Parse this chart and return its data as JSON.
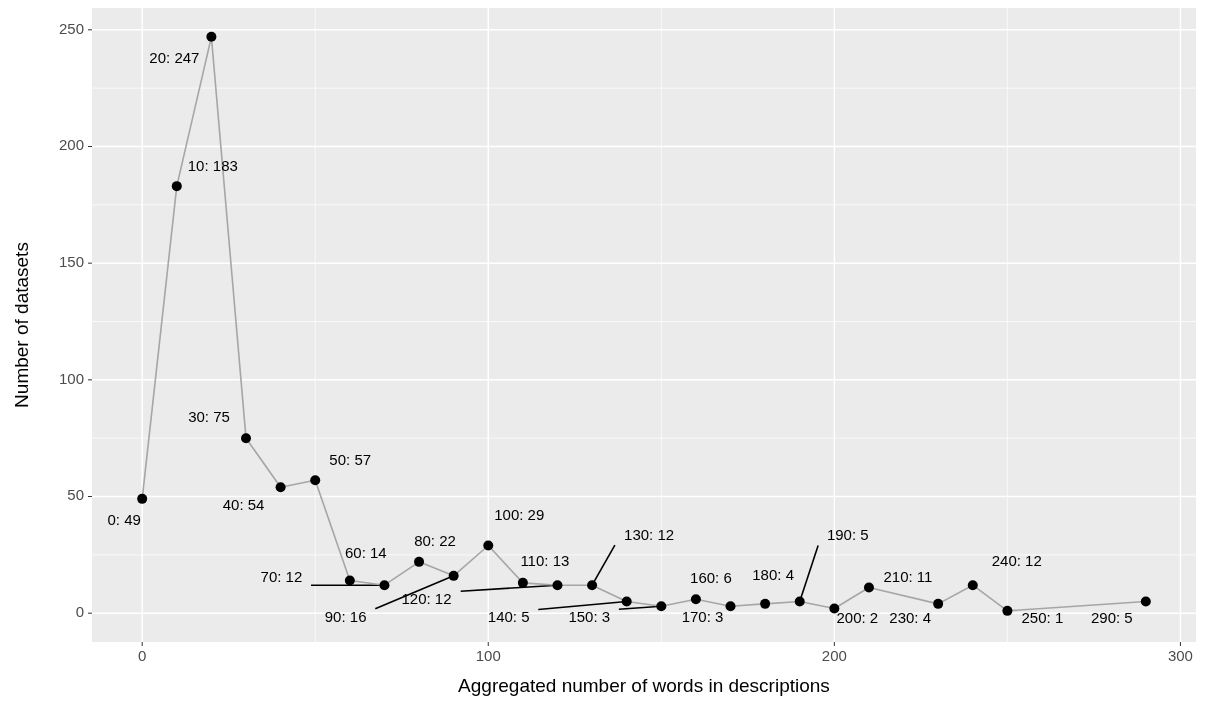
{
  "chart_data": {
    "type": "line",
    "xlabel": "Aggregated number of words in descriptions",
    "ylabel": "Number of datasets",
    "x": [
      0,
      10,
      20,
      30,
      40,
      50,
      60,
      70,
      80,
      90,
      100,
      110,
      120,
      130,
      140,
      150,
      160,
      170,
      180,
      190,
      200,
      210,
      230,
      240,
      250,
      290
    ],
    "series": [
      {
        "color": "#a6a6a6",
        "marker": "none",
        "values": [
          49,
          183,
          247,
          75,
          54,
          57,
          14,
          12,
          22,
          16,
          29,
          13,
          12,
          12,
          5,
          3,
          6,
          3,
          4,
          5,
          2,
          11,
          4,
          12,
          1,
          5
        ]
      },
      {
        "type": "scatter",
        "color": "#000000",
        "values": [
          49,
          183,
          247,
          75,
          54,
          57,
          14,
          12,
          22,
          16,
          29,
          13,
          12,
          12,
          5,
          3,
          6,
          3,
          4,
          5,
          2,
          11,
          4,
          12,
          1,
          5
        ],
        "value_labels": [
          "0: 49",
          "10: 183",
          "20: 247",
          "30: 75",
          "40: 54",
          "50: 57",
          "60: 14",
          "70: 12",
          "80: 22",
          "90: 16",
          "100: 29",
          "110: 13",
          "120: 12",
          "130: 12",
          "140: 5",
          "150: 3",
          "160: 6",
          "170: 3",
          "180: 4",
          "190: 5",
          "200: 2",
          "210: 11",
          "230: 4",
          "240: 12",
          "250: 1",
          "290: 5"
        ]
      }
    ],
    "xlim": [
      -14.5,
      304.5
    ],
    "ylim": [
      -12.35,
      259.35
    ],
    "xticks": [
      0,
      100,
      200,
      300
    ],
    "yticks": [
      0,
      50,
      100,
      150,
      200,
      250
    ],
    "grid": true,
    "marker": "circle",
    "line_style": "solid"
  }
}
